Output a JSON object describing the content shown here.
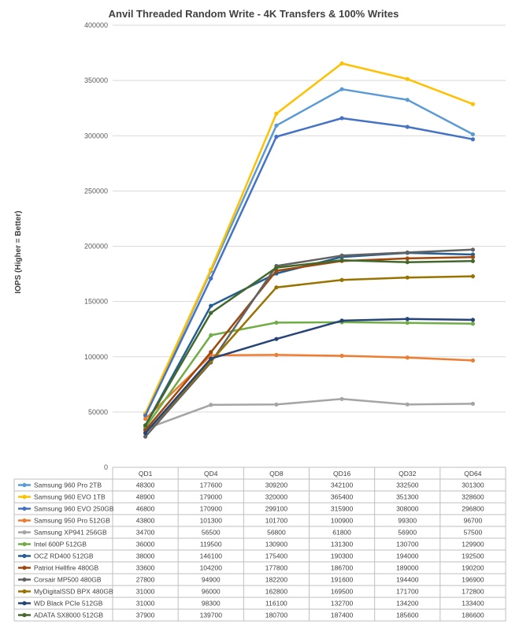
{
  "chart_data": {
    "type": "line",
    "title": "Anvil Threaded Random Write - 4K Transfers & 100% Writes",
    "xlabel": "",
    "ylabel": "IOPS (Higher = Better)",
    "ylim": [
      0,
      400000
    ],
    "yticks": [
      "0",
      "50000",
      "100000",
      "150000",
      "200000",
      "250000",
      "300000",
      "350000",
      "400000"
    ],
    "categories": [
      "QD1",
      "QD4",
      "QD8",
      "QD16",
      "QD32",
      "QD64"
    ],
    "grid": true,
    "legend": "data-table",
    "series": [
      {
        "name": "Samsung 960 Pro 2TB",
        "color": "#5b9bd5",
        "values": [
          48300,
          177600,
          309200,
          342100,
          332500,
          301300
        ]
      },
      {
        "name": "Samsung 960 EVO 1TB",
        "color": "#ffc000",
        "values": [
          48900,
          179000,
          320000,
          365400,
          351300,
          328600
        ]
      },
      {
        "name": "Samsung 960 EVO 250GB",
        "color": "#4472c4",
        "values": [
          46800,
          170900,
          299100,
          315900,
          308000,
          296800
        ]
      },
      {
        "name": "Samsung 950 Pro 512GB",
        "color": "#ed7d31",
        "values": [
          43800,
          101300,
          101700,
          100900,
          99300,
          96700
        ]
      },
      {
        "name": "Samsung XP941 256GB",
        "color": "#a5a5a5",
        "values": [
          34700,
          56500,
          56800,
          61800,
          56900,
          57500
        ]
      },
      {
        "name": "Intel 600P 512GB",
        "color": "#70ad47",
        "values": [
          36000,
          119500,
          130900,
          131300,
          130700,
          129900
        ]
      },
      {
        "name": "OCZ RD400 512GB",
        "color": "#255e91",
        "values": [
          38000,
          146100,
          175400,
          190300,
          194000,
          192500
        ]
      },
      {
        "name": "Patriot Hellfire 480GB",
        "color": "#9e480e",
        "values": [
          33600,
          104200,
          177800,
          186700,
          189000,
          190200
        ]
      },
      {
        "name": "Corsair MP500 480GB",
        "color": "#636363",
        "values": [
          27800,
          94900,
          182200,
          191600,
          194400,
          196900
        ]
      },
      {
        "name": "MyDigitalSSD BPX 480GB",
        "color": "#997300",
        "values": [
          31000,
          96000,
          162800,
          169500,
          171700,
          172800
        ]
      },
      {
        "name": "WD Black PCIe 512GB",
        "color": "#264478",
        "values": [
          31000,
          98300,
          116100,
          132700,
          134200,
          133400
        ]
      },
      {
        "name": "ADATA SX8000 512GB",
        "color": "#43682b",
        "values": [
          37900,
          139700,
          180700,
          187400,
          185600,
          186600
        ]
      }
    ],
    "table": {
      "rows": [
        [
          "48300",
          "177600",
          "309200",
          "342100",
          "332500",
          "301300"
        ],
        [
          "48900",
          "179000",
          "320000",
          "365400",
          "351300",
          "328600"
        ],
        [
          "46800",
          "170900",
          "299100",
          "315900",
          "308000",
          "296800"
        ],
        [
          "43800",
          "101300",
          "101700",
          "100900",
          "99300",
          "96700"
        ],
        [
          "34700",
          "56500",
          "56800",
          "61800",
          "56900",
          "57500"
        ],
        [
          "36000",
          "119500",
          "130900",
          "131300",
          "130700",
          "129900"
        ],
        [
          "38000",
          "146100",
          "175400",
          "190300",
          "194000",
          "192500"
        ],
        [
          "33600",
          "104200",
          "177800",
          "186700",
          "189000",
          "190200"
        ],
        [
          "27800",
          "94900",
          "182200",
          "191600",
          "194400",
          "196900"
        ],
        [
          "31000",
          "96000",
          "162800",
          "169500",
          "171700",
          "172800"
        ],
        [
          "31000",
          "98300",
          "116100",
          "132700",
          "134200",
          "133400"
        ],
        [
          "37900",
          "139700",
          "180700",
          "187400",
          "185600",
          "186600"
        ]
      ]
    }
  }
}
